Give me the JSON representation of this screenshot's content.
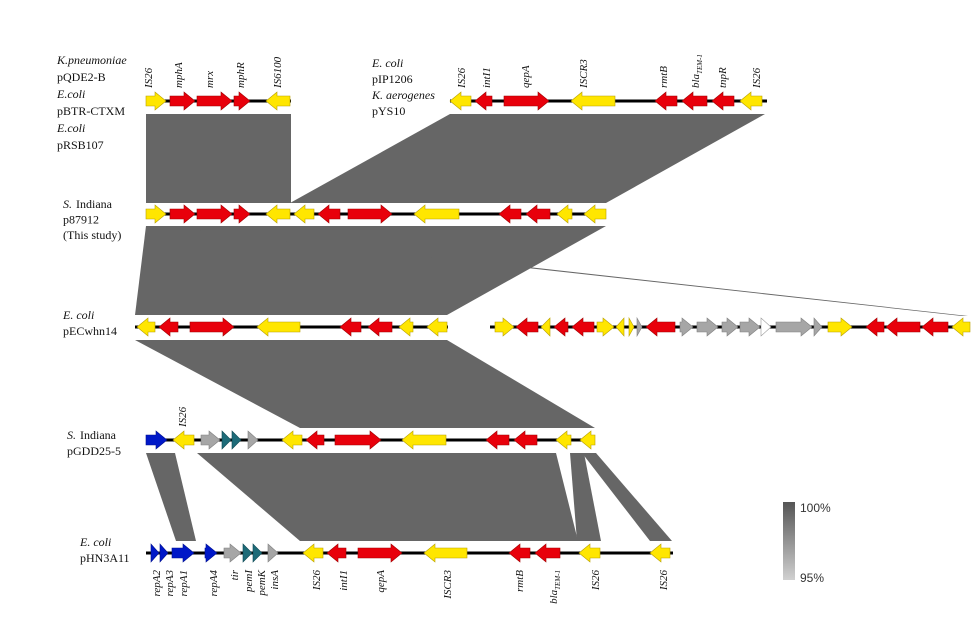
{
  "tracks": [
    {
      "lines": [
        [
          {
            "text": "K.pneumoniae",
            "italic": true
          }
        ],
        [
          {
            "text": "pQDE2-B"
          }
        ],
        [
          {
            "text": "E.coli",
            "italic": true
          }
        ],
        [
          {
            "text": "pBTR-CTXM"
          }
        ],
        [
          {
            "text": "E.coli",
            "italic": true
          }
        ],
        [
          {
            "text": "pRSB107"
          }
        ]
      ]
    },
    {
      "lines": [
        [
          {
            "text": "E. coli",
            "italic": true
          }
        ],
        [
          {
            "text": "pIP1206"
          }
        ],
        [
          {
            "text": "K. aerogenes",
            "italic": true
          }
        ],
        [
          {
            "text": "pYS10"
          }
        ]
      ]
    },
    {
      "lines": [
        [
          {
            "text": "S.",
            "italic": true
          },
          {
            "text": "Indiana"
          }
        ],
        [
          {
            "text": "p87912"
          }
        ],
        [
          {
            "text": "(This study)"
          }
        ]
      ]
    },
    {
      "lines": [
        [
          {
            "text": "E. coli",
            "italic": true
          }
        ],
        [
          {
            "text": "pECwhn14"
          }
        ]
      ]
    },
    {
      "lines": [
        [
          {
            "text": "S.",
            "italic": true
          },
          {
            "text": "Indiana"
          }
        ],
        [
          {
            "text": "pGDD25-5"
          }
        ]
      ]
    },
    {
      "lines": [
        [
          {
            "text": "E. coli",
            "italic": true
          }
        ],
        [
          {
            "text": "pHN3A11"
          }
        ]
      ]
    }
  ],
  "gene_labels": {
    "top": [
      {
        "text": "IS26"
      },
      {
        "text": "mphA"
      },
      {
        "text": "mrx"
      },
      {
        "text": "mphR"
      },
      {
        "text": "IS6100"
      },
      {
        "text": "IS26"
      },
      {
        "text": "intI1"
      },
      {
        "text": "qepA"
      },
      {
        "text": "ISCR3"
      },
      {
        "text": "rmtB"
      },
      {
        "text": "bla",
        "sub": "TEM-1"
      },
      {
        "text": "tnpR"
      },
      {
        "text": "IS26"
      }
    ],
    "middle": [
      {
        "text": "IS26"
      }
    ],
    "bottom": [
      {
        "text": "repA2"
      },
      {
        "text": "repA3"
      },
      {
        "text": "repA1"
      },
      {
        "text": "repA4"
      },
      {
        "text": "tir"
      },
      {
        "text": "pemI"
      },
      {
        "text": "pemK"
      },
      {
        "text": "insA"
      },
      {
        "text": "IS26"
      },
      {
        "text": "intI1"
      },
      {
        "text": "qepA"
      },
      {
        "text": "ISCR3"
      },
      {
        "text": "rmtB"
      },
      {
        "text": "bla",
        "sub": "TEM-1"
      },
      {
        "text": "IS26"
      },
      {
        "text": "IS26"
      }
    ]
  },
  "legend": {
    "max": "100%",
    "min": "95%"
  }
}
